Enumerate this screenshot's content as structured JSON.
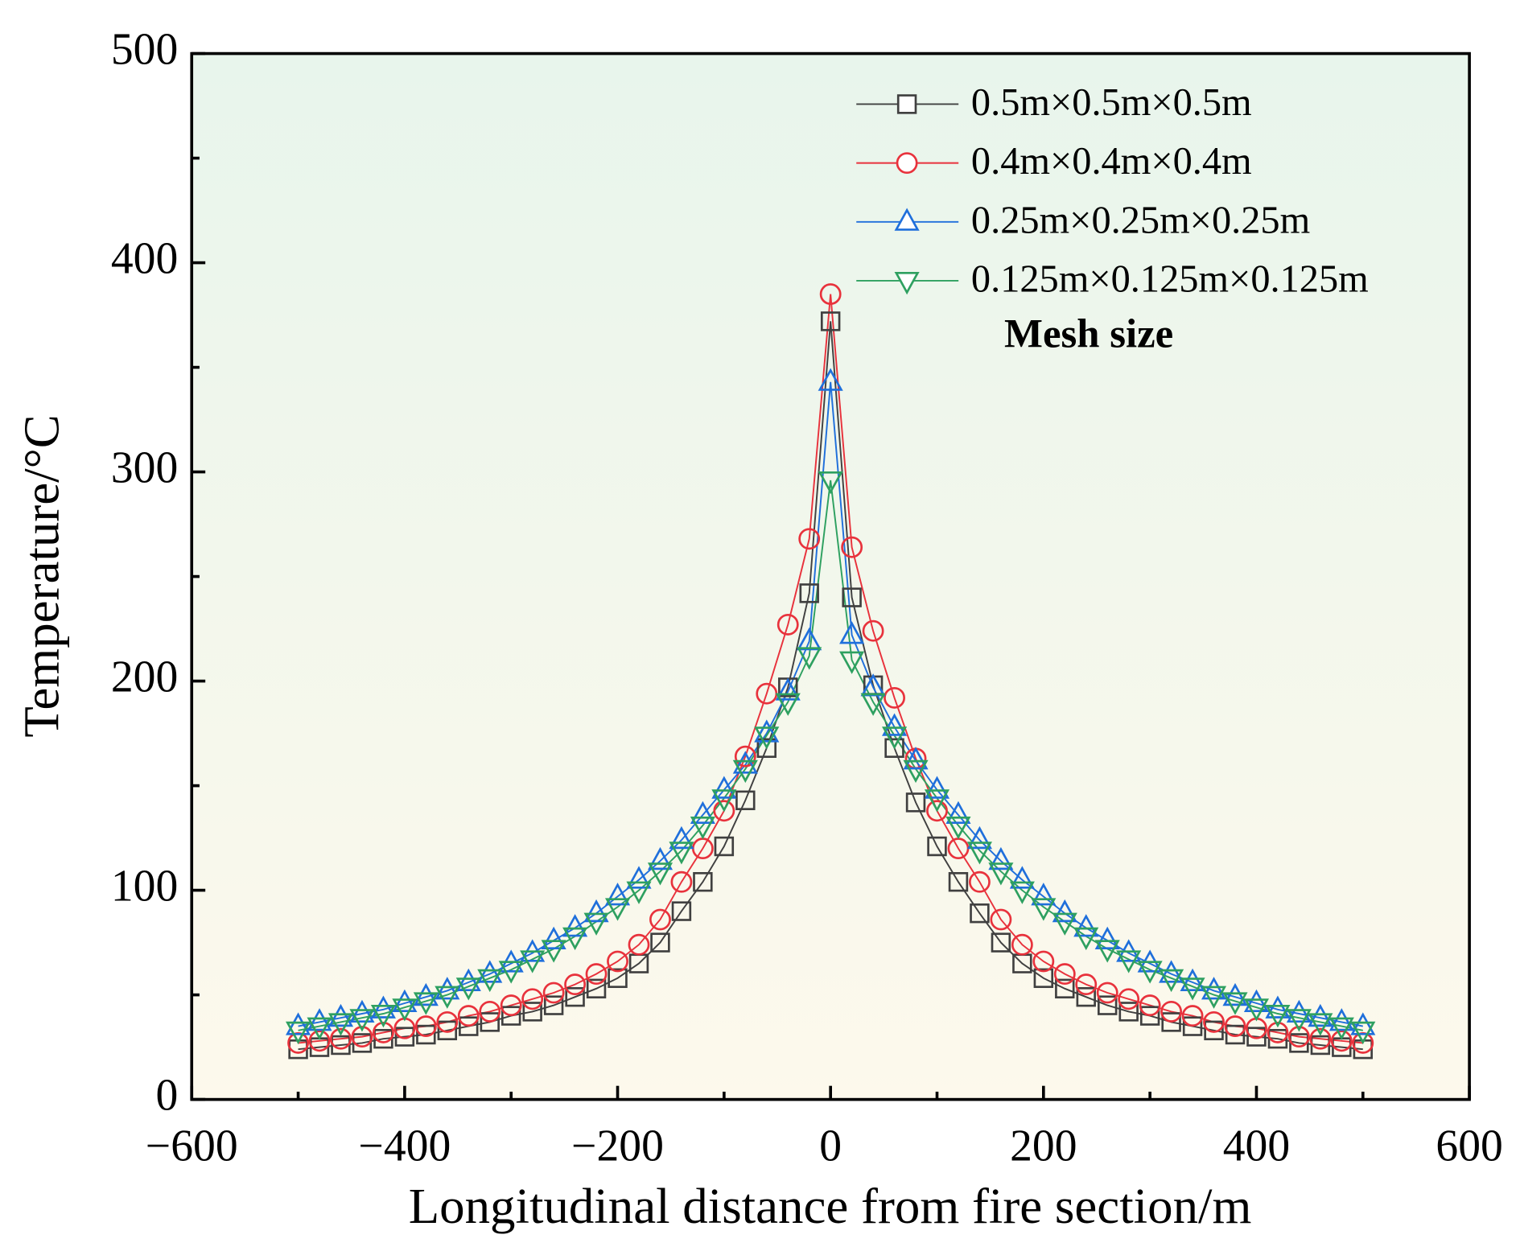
{
  "chart_data": {
    "type": "line",
    "xlabel": "Longitudinal distance from fire section/m",
    "ylabel": "Temperature/°C",
    "legend_title": "Mesh size",
    "legend": "upper right",
    "x": [
      -500,
      -480,
      -460,
      -440,
      -420,
      -400,
      -380,
      -360,
      -340,
      -320,
      -300,
      -280,
      -260,
      -240,
      -220,
      -200,
      -180,
      -160,
      -140,
      -120,
      -100,
      -80,
      -60,
      -40,
      -20,
      0,
      20,
      40,
      60,
      80,
      100,
      120,
      140,
      160,
      180,
      200,
      220,
      240,
      260,
      280,
      300,
      320,
      340,
      360,
      380,
      400,
      420,
      440,
      460,
      480,
      500
    ],
    "series": [
      {
        "name": "0.5m×0.5m×0.5m",
        "color": "#404040",
        "marker": "square",
        "values": [
          24,
          25,
          26,
          27,
          29,
          30,
          31,
          33,
          35,
          37,
          40,
          42,
          45,
          49,
          53,
          58,
          65,
          75,
          90,
          104,
          121,
          143,
          168,
          197,
          242,
          372,
          240,
          198,
          168,
          142,
          121,
          104,
          89,
          75,
          65,
          58,
          53,
          49,
          45,
          42,
          40,
          37,
          35,
          33,
          31,
          30,
          29,
          27,
          26,
          25,
          24
        ]
      },
      {
        "name": "0.4m×0.4m×0.4m",
        "color": "#e8323c",
        "marker": "circle",
        "values": [
          27,
          28,
          29,
          30,
          32,
          34,
          35,
          37,
          40,
          42,
          45,
          48,
          51,
          55,
          60,
          66,
          74,
          86,
          104,
          120,
          138,
          164,
          194,
          227,
          268,
          385,
          264,
          224,
          192,
          163,
          138,
          120,
          104,
          86,
          74,
          66,
          60,
          55,
          51,
          48,
          45,
          42,
          40,
          37,
          35,
          34,
          32,
          30,
          29,
          28,
          27
        ]
      },
      {
        "name": "0.25m×0.25m×0.25m",
        "color": "#1f6fdb",
        "marker": "triangle-up",
        "values": [
          35,
          37,
          39,
          41,
          43,
          46,
          49,
          52,
          56,
          60,
          65,
          70,
          76,
          82,
          89,
          97,
          105,
          114,
          124,
          136,
          148,
          160,
          175,
          195,
          219,
          343,
          222,
          197,
          178,
          162,
          148,
          136,
          124,
          114,
          105,
          97,
          89,
          82,
          76,
          70,
          65,
          60,
          56,
          52,
          49,
          46,
          43,
          41,
          39,
          37,
          35
        ]
      },
      {
        "name": "0.125m×0.125m×0.125m",
        "color": "#2ea060",
        "marker": "triangle-down",
        "values": [
          33,
          35,
          37,
          39,
          41,
          44,
          47,
          50,
          54,
          58,
          62,
          67,
          72,
          78,
          85,
          92,
          100,
          109,
          119,
          131,
          144,
          158,
          174,
          190,
          212,
          296,
          210,
          190,
          174,
          158,
          144,
          131,
          119,
          109,
          100,
          92,
          85,
          78,
          72,
          67,
          62,
          58,
          54,
          50,
          47,
          44,
          41,
          39,
          37,
          35,
          33
        ]
      }
    ],
    "xlim": [
      -600,
      600
    ],
    "xticks": [
      {
        "value": -600,
        "label": "−600"
      },
      {
        "value": -400,
        "label": "−400"
      },
      {
        "value": -200,
        "label": "−200"
      },
      0,
      200,
      400,
      600
    ],
    "xminorticks": [
      -500,
      -300,
      -100,
      100,
      300,
      500
    ],
    "ylim": [
      0,
      500
    ],
    "yticks": [
      0,
      100,
      200,
      300,
      400,
      500
    ],
    "yminorticks": [
      50,
      150,
      250,
      350,
      450
    ]
  }
}
